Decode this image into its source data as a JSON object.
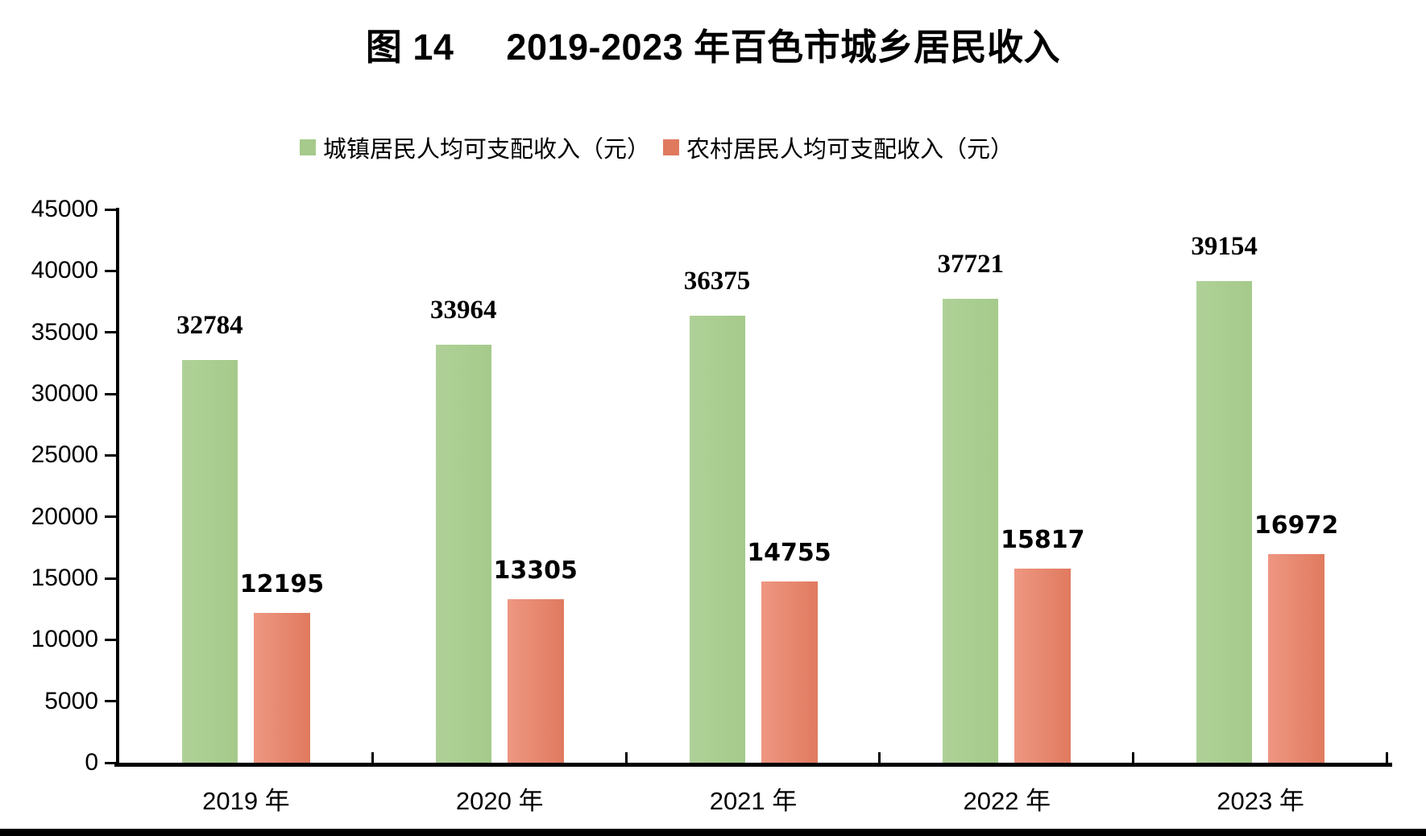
{
  "chart_data": {
    "type": "bar",
    "title": "图 14     2019-2023 年百色市城乡居民收入",
    "categories": [
      "2019 年",
      "2020 年",
      "2021 年",
      "2022 年",
      "2023 年"
    ],
    "series": [
      {
        "name": "城镇居民人均可支配收入（元）",
        "color": "#A5CA8B",
        "color_light": "#AFD198",
        "values": [
          32784,
          33964,
          36375,
          37721,
          39154
        ]
      },
      {
        "name": "农村居民人均可支配收入（元）",
        "color": "#E07A5F",
        "color_light": "#EE9782",
        "values": [
          12195,
          13305,
          14755,
          15817,
          16972
        ]
      }
    ],
    "ylim": [
      0,
      45000
    ],
    "ytick_step": 5000,
    "grid": false,
    "legend_position": "top",
    "data_labels": true,
    "axis_color": "#000000",
    "background_color": "#FFFFFF"
  }
}
